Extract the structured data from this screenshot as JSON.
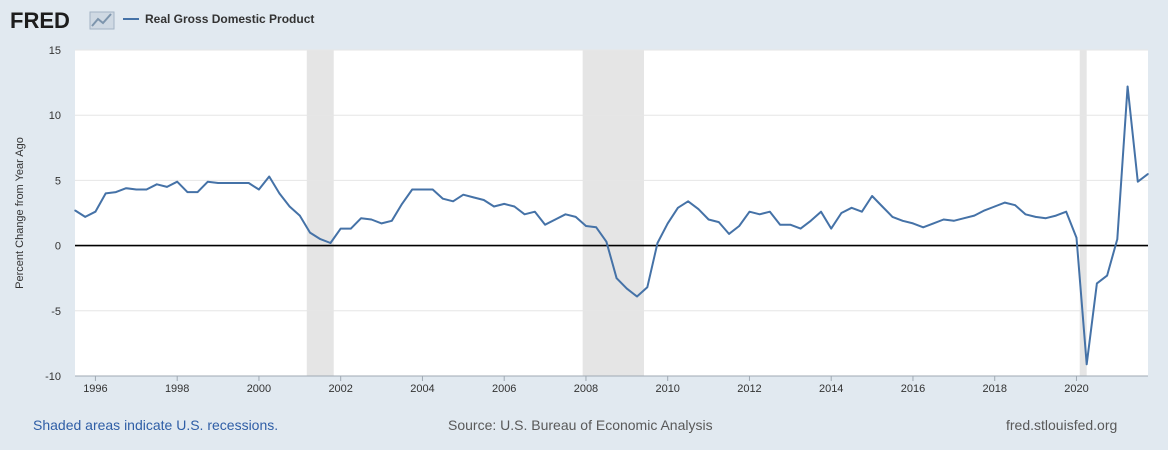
{
  "header": {
    "logo_text": "FRED",
    "logo_icon": "chart-line-icon",
    "series_color": "#4572a7"
  },
  "footer": {
    "recession_note": "Shaded areas indicate U.S. recessions.",
    "source": "Source: U.S. Bureau of Economic Analysis",
    "site": "fred.stlouisfed.org"
  },
  "chart_data": {
    "type": "line",
    "title": "",
    "xlabel": "",
    "ylabel": "Percent Change from Year Ago",
    "xlim": [
      1995.5,
      2021.75
    ],
    "ylim": [
      -10,
      15
    ],
    "y_ticks": [
      15,
      10,
      5,
      0,
      -5,
      -10
    ],
    "x_ticks": [
      1996,
      1998,
      2000,
      2002,
      2004,
      2006,
      2008,
      2010,
      2012,
      2014,
      2016,
      2018,
      2020
    ],
    "grid": true,
    "legend_position": "top-left",
    "recessions": [
      [
        2001.17,
        2001.83
      ],
      [
        2007.92,
        2009.42
      ],
      [
        2020.08,
        2020.25
      ]
    ],
    "series": [
      {
        "name": "Real Gross Domestic Product",
        "color": "#4572a7",
        "x": [
          1995.5,
          1995.75,
          1996,
          1996.25,
          1996.5,
          1996.75,
          1997,
          1997.25,
          1997.5,
          1997.75,
          1998,
          1998.25,
          1998.5,
          1998.75,
          1999,
          1999.25,
          1999.5,
          1999.75,
          2000,
          2000.25,
          2000.5,
          2000.75,
          2001,
          2001.25,
          2001.5,
          2001.75,
          2002,
          2002.25,
          2002.5,
          2002.75,
          2003,
          2003.25,
          2003.5,
          2003.75,
          2004,
          2004.25,
          2004.5,
          2004.75,
          2005,
          2005.25,
          2005.5,
          2005.75,
          2006,
          2006.25,
          2006.5,
          2006.75,
          2007,
          2007.25,
          2007.5,
          2007.75,
          2008,
          2008.25,
          2008.5,
          2008.75,
          2009,
          2009.25,
          2009.5,
          2009.75,
          2010,
          2010.25,
          2010.5,
          2010.75,
          2011,
          2011.25,
          2011.5,
          2011.75,
          2012,
          2012.25,
          2012.5,
          2012.75,
          2013,
          2013.25,
          2013.5,
          2013.75,
          2014,
          2014.25,
          2014.5,
          2014.75,
          2015,
          2015.25,
          2015.5,
          2015.75,
          2016,
          2016.25,
          2016.5,
          2016.75,
          2017,
          2017.25,
          2017.5,
          2017.75,
          2018,
          2018.25,
          2018.5,
          2018.75,
          2019,
          2019.25,
          2019.5,
          2019.75,
          2020,
          2020.25,
          2020.5,
          2020.75,
          2021,
          2021.25,
          2021.5,
          2021.75
        ],
        "values": [
          2.7,
          2.2,
          2.6,
          4.0,
          4.1,
          4.4,
          4.3,
          4.3,
          4.7,
          4.5,
          4.9,
          4.1,
          4.1,
          4.9,
          4.8,
          4.8,
          4.8,
          4.8,
          4.3,
          5.3,
          4.0,
          3.0,
          2.3,
          1.0,
          0.5,
          0.2,
          1.3,
          1.3,
          2.1,
          2.0,
          1.7,
          1.9,
          3.2,
          4.3,
          4.3,
          4.3,
          3.6,
          3.4,
          3.9,
          3.7,
          3.5,
          3.0,
          3.2,
          3.0,
          2.4,
          2.6,
          1.6,
          2.0,
          2.4,
          2.2,
          1.5,
          1.4,
          0.3,
          -2.5,
          -3.3,
          -3.9,
          -3.2,
          0.2,
          1.7,
          2.9,
          3.4,
          2.8,
          2.0,
          1.8,
          0.9,
          1.5,
          2.6,
          2.4,
          2.6,
          1.6,
          1.6,
          1.3,
          1.9,
          2.6,
          1.3,
          2.5,
          2.9,
          2.6,
          3.8,
          3.0,
          2.2,
          1.9,
          1.7,
          1.4,
          1.7,
          2.0,
          1.9,
          2.1,
          2.3,
          2.7,
          3.0,
          3.3,
          3.1,
          2.4,
          2.2,
          2.1,
          2.3,
          2.6,
          0.6,
          -9.1,
          -2.9,
          -2.3,
          0.5,
          12.2,
          4.9,
          5.5
        ]
      }
    ]
  }
}
